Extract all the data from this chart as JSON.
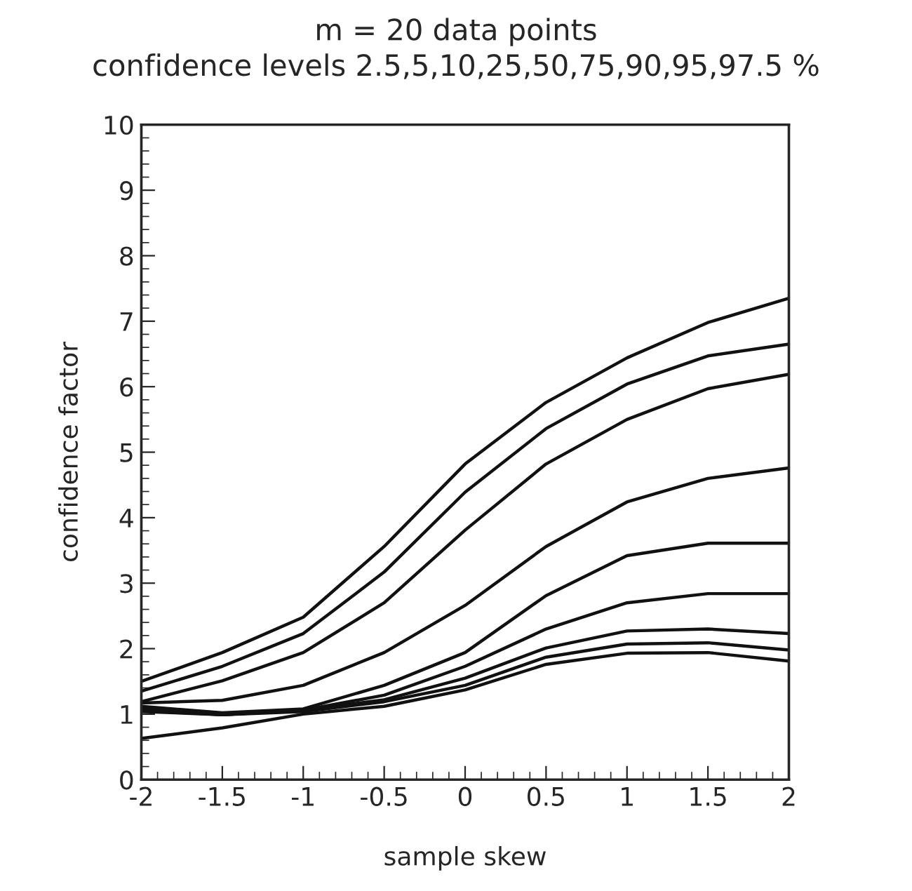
{
  "chart_data": {
    "type": "line",
    "title": "m = 20 data points",
    "subtitle": "confidence levels 2.5,5,10,25,50,75,90,95,97.5 %",
    "xlabel": "sample skew",
    "ylabel": "confidence factor",
    "x": [
      -2,
      -1.5,
      -1,
      -0.5,
      0,
      0.5,
      1,
      1.5,
      2
    ],
    "series": [
      {
        "color": "#111111",
        "values": [
          0.63,
          0.79,
          1.0,
          1.12,
          1.37,
          1.76,
          1.93,
          1.94,
          1.81
        ]
      },
      {
        "color": "#111111",
        "values": [
          1.04,
          0.99,
          1.04,
          1.19,
          1.44,
          1.87,
          2.07,
          2.09,
          1.98
        ]
      },
      {
        "color": "#111111",
        "values": [
          1.06,
          0.99,
          1.06,
          1.22,
          1.55,
          2.01,
          2.27,
          2.3,
          2.23
        ]
      },
      {
        "color": "#111111",
        "values": [
          1.08,
          0.99,
          1.06,
          1.29,
          1.73,
          2.3,
          2.7,
          2.84,
          2.84
        ]
      },
      {
        "color": "#111111",
        "values": [
          1.12,
          1.02,
          1.08,
          1.44,
          1.94,
          2.81,
          3.42,
          3.61,
          3.61
        ]
      },
      {
        "color": "#111111",
        "values": [
          1.17,
          1.21,
          1.44,
          1.94,
          2.66,
          3.56,
          4.24,
          4.6,
          4.76
        ]
      },
      {
        "color": "#111111",
        "values": [
          1.19,
          1.51,
          1.94,
          2.7,
          3.81,
          4.82,
          5.5,
          5.97,
          6.19
        ]
      },
      {
        "color": "#111111",
        "values": [
          1.35,
          1.73,
          2.23,
          3.17,
          4.39,
          5.36,
          6.04,
          6.47,
          6.65
        ]
      },
      {
        "color": "#111111",
        "values": [
          1.5,
          1.94,
          2.48,
          3.56,
          4.82,
          5.76,
          6.44,
          6.98,
          7.35
        ]
      }
    ],
    "xlim": [
      -2,
      2
    ],
    "xticks": [
      -2,
      -1.5,
      -1,
      -0.5,
      0,
      0.5,
      1,
      1.5,
      2
    ],
    "ylim": [
      0,
      10
    ],
    "yticks": [
      0,
      1,
      2,
      3,
      4,
      5,
      6,
      7,
      8,
      9,
      10
    ],
    "grid": false,
    "line_style": "solid"
  }
}
